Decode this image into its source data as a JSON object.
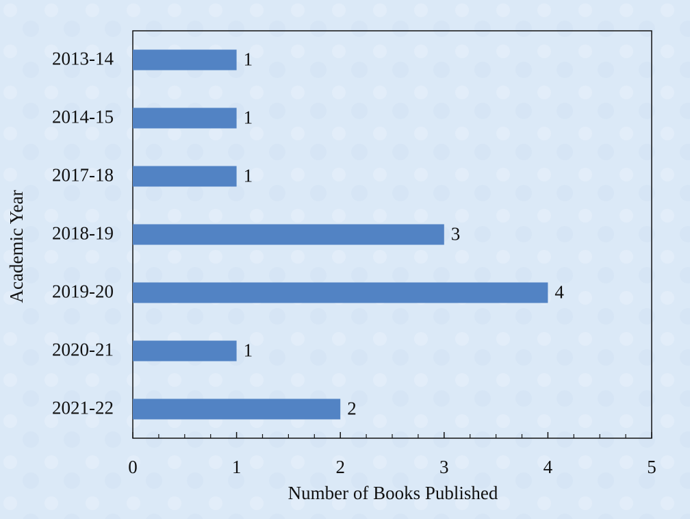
{
  "chart_data": {
    "type": "bar",
    "orientation": "horizontal",
    "xlabel": "Number of Books Published",
    "ylabel": "Academic Year",
    "categories": [
      "2013-14",
      "2014-15",
      "2017-18",
      "2018-19",
      "2019-20",
      "2020-21",
      "2021-22"
    ],
    "values": [
      1,
      1,
      1,
      3,
      4,
      1,
      2
    ],
    "color": "#5283c4",
    "xlim": [
      0,
      5
    ],
    "xticks": [
      0,
      1,
      2,
      3,
      4,
      5
    ],
    "xminorticks": [
      0.25,
      0.5,
      0.75,
      1.25,
      1.5,
      1.75,
      2.25,
      2.5,
      2.75,
      3.25,
      3.5,
      3.75,
      4.25,
      4.5,
      4.75
    ],
    "grid": false
  }
}
